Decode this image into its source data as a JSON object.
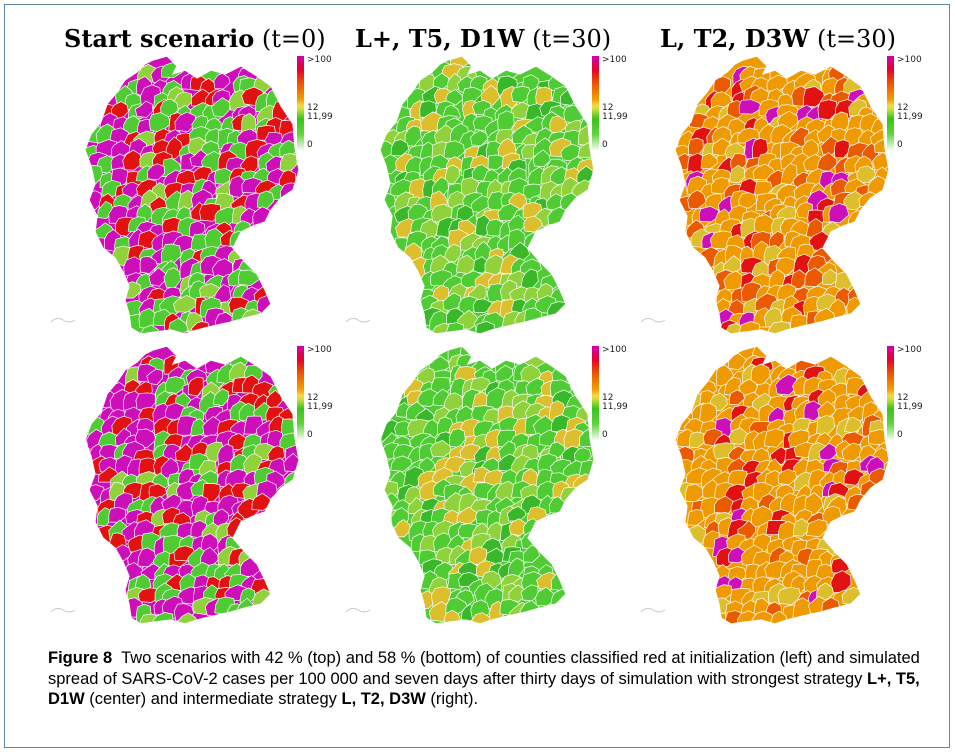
{
  "headers": [
    {
      "bold": "Start scenario",
      "time": "(t=0)"
    },
    {
      "bold": "L+, T5, D1W",
      "time": "(t=30)"
    },
    {
      "bold": "L, T2, D3W",
      "time": "(t=30)"
    }
  ],
  "legend": {
    "max": ">100",
    "mid_high": "12",
    "mid_low": "11,99",
    "min": "0"
  },
  "colors": {
    "magenta": "#cc0fb8",
    "red": "#e21212",
    "orange_red": "#ea5a00",
    "orange": "#ee9a00",
    "yellow": "#ddbe2c",
    "light_green": "#8fd23c",
    "green": "#4fcb34",
    "dark_green": "#39b82a",
    "frame": "#5f87a8"
  },
  "panels": [
    {
      "row": "top",
      "column": "left",
      "palette": [
        "magenta",
        "magenta",
        "green",
        "green",
        "green",
        "light_green",
        "red",
        "magenta",
        "green",
        "red"
      ]
    },
    {
      "row": "top",
      "column": "center",
      "palette": [
        "green",
        "light_green",
        "green",
        "yellow",
        "green",
        "dark_green",
        "light_green",
        "green",
        "yellow",
        "green"
      ]
    },
    {
      "row": "top",
      "column": "right",
      "palette": [
        "orange",
        "orange",
        "orange_red",
        "orange",
        "red",
        "yellow",
        "orange",
        "magenta",
        "orange_red",
        "orange"
      ]
    },
    {
      "row": "bottom",
      "column": "left",
      "palette": [
        "magenta",
        "magenta",
        "green",
        "red",
        "green",
        "magenta",
        "light_green",
        "red",
        "magenta",
        "green"
      ]
    },
    {
      "row": "bottom",
      "column": "center",
      "palette": [
        "green",
        "light_green",
        "green",
        "green",
        "yellow",
        "dark_green",
        "light_green",
        "green",
        "green",
        "yellow"
      ]
    },
    {
      "row": "bottom",
      "column": "right",
      "palette": [
        "orange",
        "orange",
        "orange",
        "orange_red",
        "yellow",
        "orange",
        "magenta",
        "orange",
        "red",
        "orange"
      ]
    }
  ],
  "caption": {
    "label": "Figure 8",
    "text_1": "Two scenarios with 42 % (top) and 58 % (bottom) of counties classified red at initialization (left) and simulated spread of SARS-CoV-2 cases per 100 000 and seven days after thirty days of simulation with strongest strategy",
    "strategy_1": "L+, T5, D1W",
    "text_2": "(center) and intermediate strategy",
    "strategy_2": "L, T2, D3W",
    "text_3": "(right)."
  }
}
